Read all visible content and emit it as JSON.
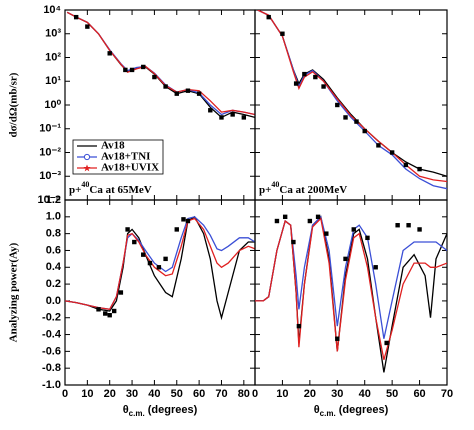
{
  "chart_data": [
    {
      "type": "line",
      "log_y": true,
      "xlim": [
        0,
        85
      ],
      "ylim": [
        0.0001,
        10000
      ],
      "yticks": [
        {
          "value": 0.0001,
          "label": "10⁻⁴"
        },
        {
          "value": 0.001,
          "label": "10⁻³"
        },
        {
          "value": 0.01,
          "label": "10⁻²"
        },
        {
          "value": 0.1,
          "label": "10⁻¹"
        },
        {
          "value": 1,
          "label": "10⁰"
        },
        {
          "value": 10,
          "label": "10¹"
        },
        {
          "value": 100,
          "label": "10²"
        },
        {
          "value": 1000,
          "label": "10³"
        },
        {
          "value": 10000,
          "label": "10⁴"
        }
      ],
      "y_label": "dσ/dΩ(mb/sr)",
      "annotation": {
        "pre": "p+",
        "sup": "40",
        "post": "Ca at 65MeV"
      },
      "legend": "upper-left-middle",
      "x": [
        1,
        5,
        10,
        15,
        20,
        25,
        28,
        32,
        36,
        40,
        45,
        50,
        55,
        60,
        65,
        70,
        75,
        80,
        85
      ],
      "series": [
        {
          "name": "Av18",
          "color": "#000000",
          "values": [
            8000,
            5000,
            3000,
            1000,
            200,
            50,
            25,
            35,
            40,
            20,
            6,
            3,
            4,
            3,
            0.8,
            0.3,
            0.5,
            0.4,
            0.3
          ]
        },
        {
          "name": "Av18+TNI",
          "color": "#3b4fd6",
          "marker": "circle",
          "values": [
            8000,
            5000,
            3000,
            1000,
            210,
            55,
            28,
            38,
            42,
            22,
            7,
            3.5,
            4.5,
            3.2,
            1.0,
            0.4,
            0.6,
            0.5,
            0.4
          ]
        },
        {
          "name": "Av18+UVIX",
          "color": "#e02020",
          "marker": "star",
          "values": [
            8000,
            5000,
            3000,
            1000,
            200,
            52,
            24,
            33,
            42,
            21,
            6.5,
            3.5,
            4.5,
            4,
            1.5,
            0.5,
            0.6,
            0.5,
            0.4
          ]
        }
      ],
      "points": {
        "color": "#000000",
        "x": [
          5,
          10,
          20,
          27,
          30,
          35,
          40,
          45,
          50,
          55,
          60,
          65,
          70,
          75,
          80
        ],
        "values": [
          5000,
          2000,
          150,
          30,
          30,
          40,
          15,
          6,
          3,
          4,
          3,
          0.6,
          0.3,
          0.4,
          0.3
        ]
      }
    },
    {
      "type": "line",
      "log_y": true,
      "xlim": [
        0,
        70
      ],
      "ylim": [
        0.0001,
        10000
      ],
      "annotation": {
        "pre": "p+",
        "sup": "40",
        "post": "Ca at 200MeV"
      },
      "x": [
        1,
        5,
        10,
        14,
        16,
        18,
        21,
        25,
        30,
        35,
        40,
        45,
        50,
        55,
        60,
        65,
        70
      ],
      "series": [
        {
          "color": "#000000",
          "values": [
            10000,
            6000,
            800,
            30,
            8,
            20,
            30,
            12,
            2,
            0.4,
            0.1,
            0.03,
            0.01,
            0.004,
            0.002,
            0.0015,
            0.001
          ]
        },
        {
          "color": "#3b4fd6",
          "values": [
            10000,
            6000,
            800,
            30,
            6,
            18,
            28,
            10,
            1.5,
            0.3,
            0.08,
            0.02,
            0.008,
            0.002,
            0.0008,
            0.0004,
            0.0003
          ]
        },
        {
          "color": "#e02020",
          "values": [
            10000,
            6000,
            800,
            25,
            5,
            15,
            25,
            10,
            1.8,
            0.35,
            0.1,
            0.03,
            0.01,
            0.003,
            0.001,
            0.0007,
            0.0006
          ]
        }
      ],
      "points": {
        "color": "#000000",
        "x": [
          5,
          10,
          15,
          18,
          22,
          25,
          30,
          33,
          37,
          40,
          45,
          50,
          55,
          60
        ],
        "values": [
          5000,
          1000,
          8,
          20,
          15,
          6,
          1,
          0.3,
          0.2,
          0.08,
          0.02,
          0.01,
          0.003,
          0.002
        ]
      }
    },
    {
      "type": "line",
      "xlim": [
        0,
        85
      ],
      "ylim": [
        -1,
        1.2
      ],
      "xticks": [
        0,
        10,
        20,
        30,
        40,
        50,
        60,
        70,
        80
      ],
      "yticks": [
        {
          "value": -1,
          "label": "-1.0"
        },
        -0.8,
        -0.6,
        -0.4,
        -0.2,
        {
          "value": 0,
          "label": "0.0"
        },
        0.2,
        0.4,
        0.6,
        0.8,
        {
          "value": 1,
          "label": "1.0"
        },
        1.2
      ],
      "y_label": "Analyzing power(Ay)",
      "x_label": {
        "symbol": "θ",
        "sub": "c.m.",
        "text": " (degrees)"
      },
      "x": [
        0,
        5,
        10,
        15,
        20,
        23,
        26,
        28,
        30,
        33,
        36,
        40,
        45,
        48,
        52,
        55,
        58,
        62,
        65,
        68,
        70,
        73,
        78,
        82,
        85
      ],
      "series": [
        {
          "color": "#000000",
          "values": [
            0,
            -0.02,
            -0.05,
            -0.1,
            -0.12,
            0,
            0.4,
            0.8,
            0.85,
            0.75,
            0.55,
            0.3,
            0.1,
            0.05,
            0.5,
            0.95,
            1.0,
            0.8,
            0.5,
            0.0,
            -0.2,
            0.1,
            0.6,
            0.7,
            0.7
          ]
        },
        {
          "color": "#3b4fd6",
          "values": [
            0,
            -0.02,
            -0.05,
            -0.08,
            -0.1,
            0.05,
            0.45,
            0.75,
            0.8,
            0.72,
            0.6,
            0.45,
            0.35,
            0.4,
            0.75,
            0.98,
            1.0,
            0.9,
            0.78,
            0.62,
            0.6,
            0.65,
            0.75,
            0.75,
            0.7
          ]
        },
        {
          "color": "#e02020",
          "values": [
            0,
            -0.02,
            -0.05,
            -0.08,
            -0.1,
            0.05,
            0.45,
            0.78,
            0.8,
            0.7,
            0.55,
            0.4,
            0.3,
            0.32,
            0.65,
            0.95,
            0.98,
            0.85,
            0.65,
            0.45,
            0.4,
            0.45,
            0.6,
            0.65,
            0.62
          ]
        }
      ],
      "points": {
        "color": "#000000",
        "x": [
          15,
          18,
          20,
          22,
          25,
          28,
          31,
          35,
          38,
          42,
          45,
          50,
          53,
          55
        ],
        "values": [
          -0.1,
          -0.15,
          -0.17,
          -0.12,
          0.1,
          0.85,
          0.7,
          0.55,
          0.45,
          0.4,
          0.5,
          0.85,
          0.97,
          0.95
        ]
      }
    },
    {
      "type": "line",
      "xlim": [
        0,
        70
      ],
      "ylim": [
        -1,
        1.2
      ],
      "xticks": [
        0,
        10,
        20,
        30,
        40,
        50,
        60,
        70
      ],
      "x_label": {
        "symbol": "θ",
        "sub": "c.m.",
        "text": " (degrees)"
      },
      "x": [
        0,
        3,
        5,
        8,
        11,
        13,
        15,
        16,
        18,
        21,
        24,
        27,
        30,
        33,
        36,
        38,
        41,
        44,
        47,
        50,
        54,
        58,
        62,
        64,
        66,
        70
      ],
      "series": [
        {
          "color": "#000000",
          "values": [
            0,
            0,
            0.05,
            0.6,
            0.95,
            0.9,
            0.1,
            -0.5,
            0.2,
            0.9,
            1.0,
            0.5,
            -0.6,
            0.3,
            0.8,
            0.85,
            0.5,
            -0.2,
            -0.85,
            -0.3,
            0.4,
            0.55,
            0.3,
            -0.2,
            0.5,
            0.8
          ]
        },
        {
          "color": "#3b4fd6",
          "values": [
            0,
            0,
            0.05,
            0.6,
            0.95,
            0.9,
            0.3,
            -0.1,
            0.4,
            0.9,
            1.0,
            0.6,
            -0.3,
            0.4,
            0.85,
            0.9,
            0.75,
            0.2,
            -0.45,
            0.0,
            0.6,
            0.7,
            0.7,
            0.7,
            0.7,
            0.6
          ]
        },
        {
          "color": "#e02020",
          "values": [
            0,
            0,
            0.05,
            0.6,
            0.95,
            0.9,
            0.1,
            -0.55,
            0.2,
            0.88,
            0.98,
            0.45,
            -0.6,
            0.25,
            0.75,
            0.8,
            0.4,
            -0.2,
            -0.7,
            -0.35,
            0.2,
            0.45,
            0.45,
            0.4,
            0.4,
            0.45
          ]
        }
      ],
      "points": {
        "color": "#000000",
        "x": [
          8,
          11,
          14,
          16,
          20,
          23,
          26,
          30,
          33,
          36,
          41,
          44,
          48,
          52,
          56,
          60
        ],
        "values": [
          0.95,
          1.0,
          0.7,
          -0.3,
          0.95,
          1.0,
          0.8,
          -0.45,
          0.5,
          0.85,
          0.75,
          0.4,
          -0.5,
          0.9,
          0.9,
          0.85
        ]
      }
    }
  ]
}
